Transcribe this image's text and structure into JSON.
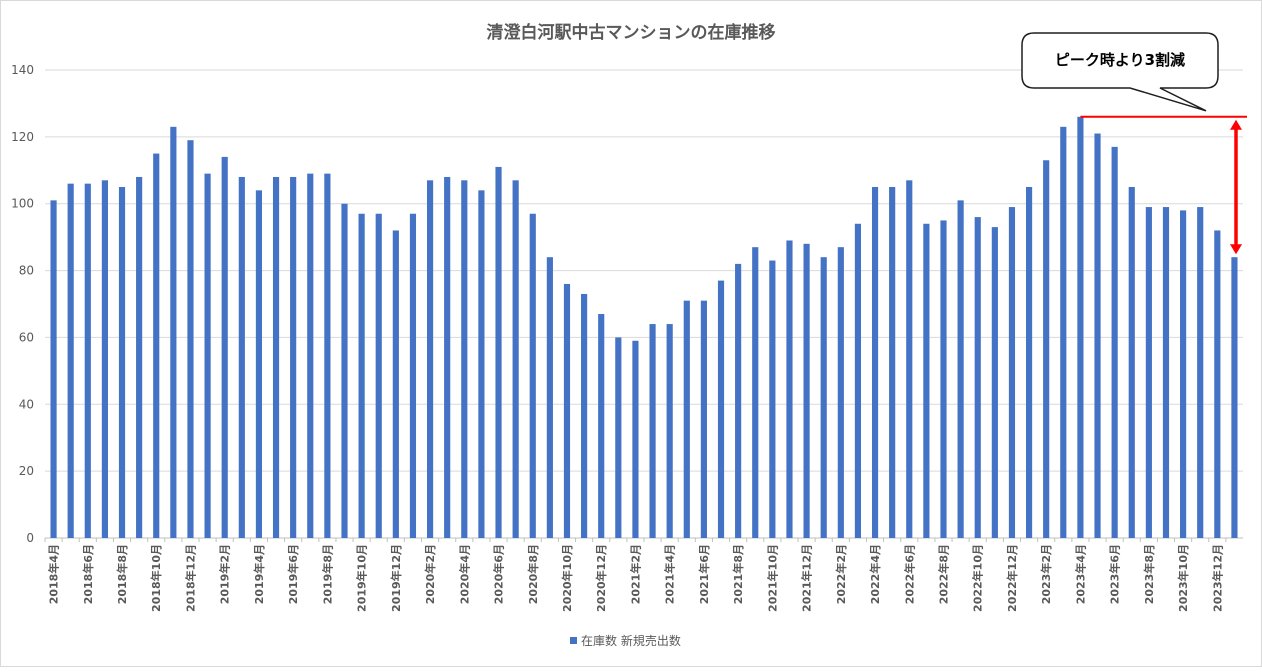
{
  "chart_data": {
    "type": "bar",
    "title": "清澄白河駅中古マンションの在庫推移",
    "xlabel": "",
    "ylabel": "",
    "ylim": [
      0,
      140
    ],
    "yticks": [
      0,
      20,
      40,
      60,
      80,
      100,
      120,
      140
    ],
    "grid": true,
    "legend_position": "bottom",
    "categories": [
      "2018年4月",
      "2018年5月",
      "2018年6月",
      "2018年7月",
      "2018年8月",
      "2018年9月",
      "2018年10月",
      "2018年11月",
      "2018年12月",
      "2019年1月",
      "2019年2月",
      "2019年3月",
      "2019年4月",
      "2019年5月",
      "2019年6月",
      "2019年7月",
      "2019年8月",
      "2019年9月",
      "2019年10月",
      "2019年11月",
      "2019年12月",
      "2020年1月",
      "2020年2月",
      "2020年3月",
      "2020年4月",
      "2020年5月",
      "2020年6月",
      "2020年7月",
      "2020年8月",
      "2020年9月",
      "2020年10月",
      "2020年11月",
      "2020年12月",
      "2021年1月",
      "2021年2月",
      "2021年3月",
      "2021年4月",
      "2021年5月",
      "2021年6月",
      "2021年7月",
      "2021年8月",
      "2021年9月",
      "2021年10月",
      "2021年11月",
      "2021年12月",
      "2022年1月",
      "2022年2月",
      "2022年3月",
      "2022年4月",
      "2022年5月",
      "2022年6月",
      "2022年7月",
      "2022年8月",
      "2022年9月",
      "2022年10月",
      "2022年11月",
      "2022年12月",
      "2023年1月",
      "2023年2月",
      "2023年3月",
      "2023年4月",
      "2023年5月",
      "2023年6月",
      "2023年7月",
      "2023年8月",
      "2023年9月",
      "2023年10月",
      "2023年11月",
      "2023年12月",
      "2024年1月"
    ],
    "shown_tick_labels": [
      "2018年4月",
      "2018年6月",
      "2018年8月",
      "2018年10月",
      "2018年12月",
      "2019年2月",
      "2019年4月",
      "2019年6月",
      "2019年8月",
      "2019年10月",
      "2019年12月",
      "2020年2月",
      "2020年4月",
      "2020年6月",
      "2020年8月",
      "2020年10月",
      "2020年12月",
      "2021年2月",
      "2021年4月",
      "2021年6月",
      "2021年8月",
      "2021年10月",
      "2021年12月",
      "2022年2月",
      "2022年4月",
      "2022年6月",
      "2022年8月",
      "2022年10月",
      "2022年12月",
      "2023年2月",
      "2023年4月",
      "2023年6月",
      "2023年8月",
      "2023年10月",
      "2023年12月"
    ],
    "series": [
      {
        "name": "在庫数 新規売出数",
        "color": "#4472c4",
        "values": [
          101,
          106,
          106,
          107,
          105,
          108,
          115,
          123,
          119,
          109,
          114,
          108,
          104,
          108,
          108,
          109,
          109,
          100,
          97,
          97,
          92,
          97,
          107,
          108,
          107,
          104,
          111,
          107,
          97,
          84,
          76,
          73,
          67,
          60,
          59,
          64,
          64,
          71,
          71,
          77,
          82,
          87,
          83,
          89,
          88,
          84,
          87,
          94,
          105,
          105,
          107,
          94,
          95,
          101,
          96,
          93,
          99,
          105,
          113,
          123,
          126,
          121,
          117,
          105,
          99,
          99,
          98,
          99,
          92,
          84
        ]
      }
    ],
    "annotation": {
      "text": "ピーク時より3割減",
      "peak_value": 126,
      "latest_value": 84,
      "line_color": "#ff0000"
    }
  }
}
